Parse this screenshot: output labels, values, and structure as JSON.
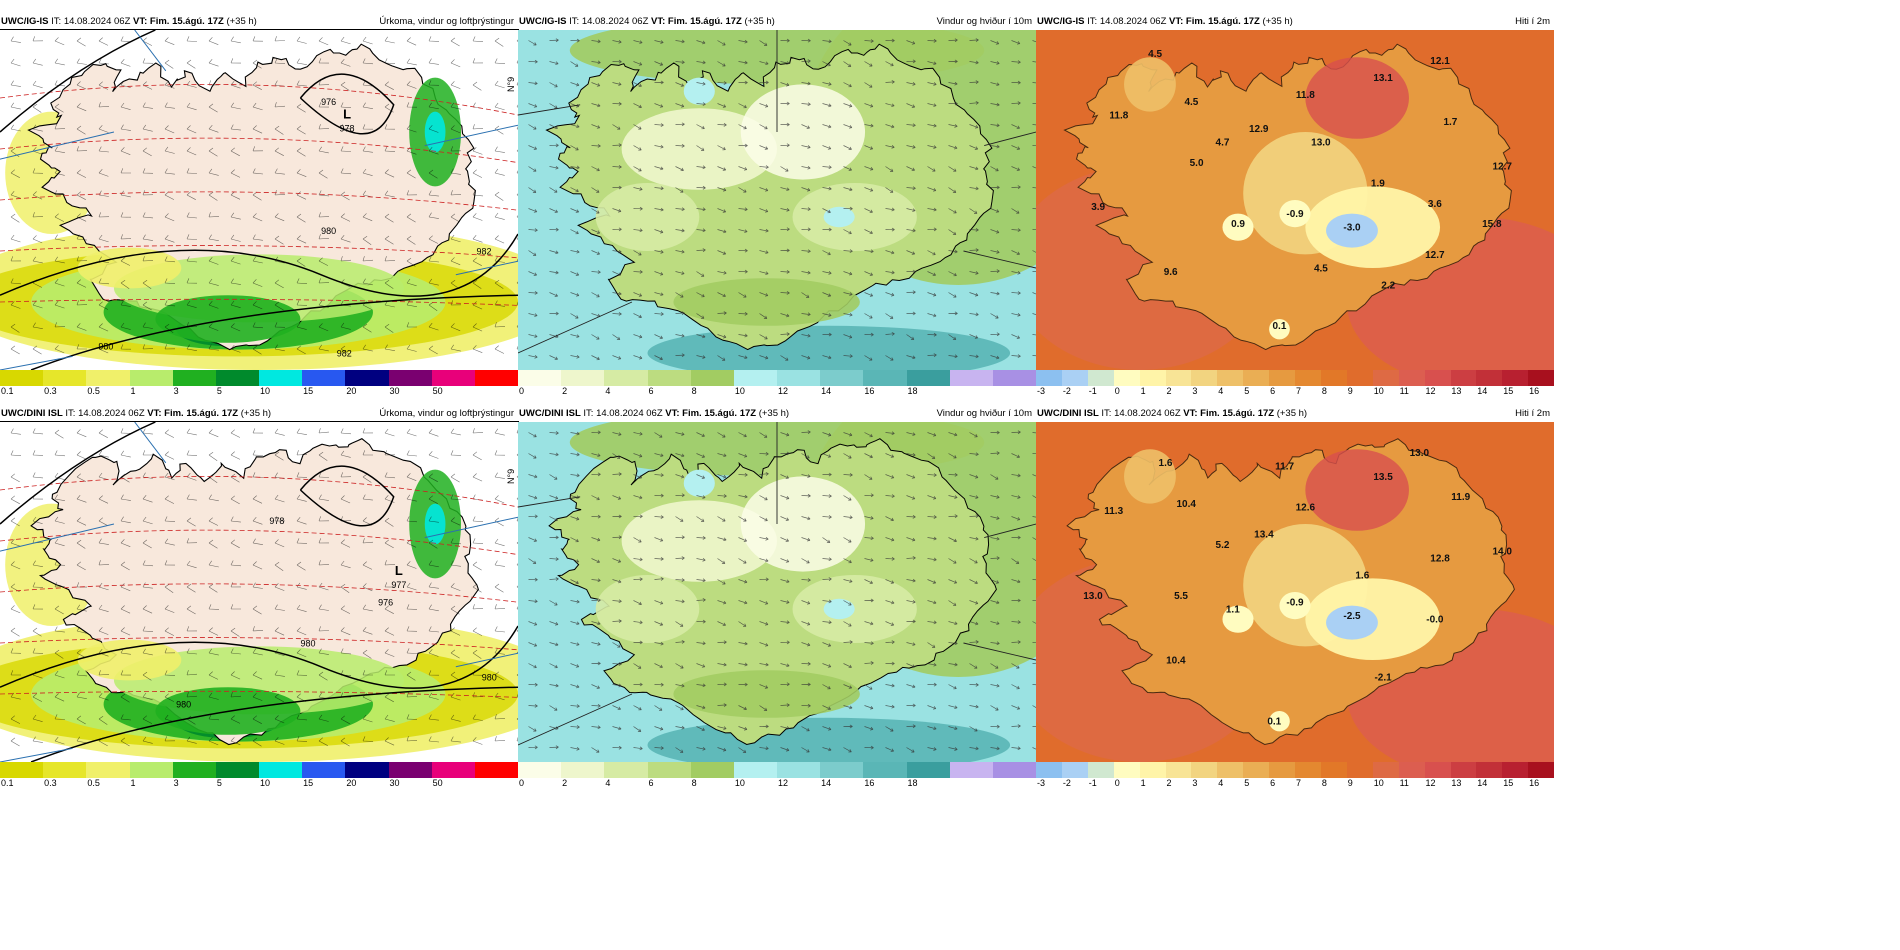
{
  "rows": [
    {
      "model": "UWC/IG-IS",
      "low": {
        "letter": "L",
        "value": "978"
      },
      "isobars": [
        "976",
        "980",
        "982",
        "982",
        "980"
      ],
      "temps": [
        "4.5",
        "11.8",
        "4.5",
        "5.0",
        "4.7",
        "3.9",
        "9.6",
        "12.9",
        "11.8",
        "13.0",
        "13.1",
        "12.1",
        "1.7",
        "12.7",
        "1.9",
        "3.6",
        "0.9",
        "-0.9",
        "-3.0",
        "15.8",
        "4.5",
        "12.7",
        "2.2",
        "0.1"
      ]
    },
    {
      "model": "UWC/DINI ISL",
      "low": {
        "letter": "L",
        "value": "977"
      },
      "isobars": [
        "978",
        "976",
        "980",
        "980",
        "980"
      ],
      "temps": [
        "1.6",
        "11.3",
        "10.4",
        "5.2",
        "13.0",
        "5.5",
        "10.4",
        "11.7",
        "13.4",
        "12.6",
        "13.5",
        "13.0",
        "11.9",
        "12.8",
        "14.0",
        "1.6",
        "1.1",
        "-0.9",
        "-2.5",
        "-0.0",
        "-2.1",
        "0.1"
      ]
    }
  ],
  "common": {
    "it_label": "IT:",
    "it_value": "14.08.2024 06Z",
    "vt_label": "VT:",
    "vt_value": "Fim. 15.ágú. 17Z",
    "lead": "(+35 h)",
    "titles": {
      "precip": "Úrkoma, vindur og loftþrýstingur",
      "wind": "Vindur og hviður í 10m",
      "temp": "Hiti í 2m"
    },
    "lat_label": "N°9"
  },
  "scales": {
    "precip": {
      "ticks": [
        "0.1",
        "0.3",
        "0.5",
        "1",
        "3",
        "5",
        "10",
        "15",
        "20",
        "30",
        "50"
      ],
      "colors": [
        "#d8d800",
        "#e6e62a",
        "#f0f06a",
        "#b8ec6c",
        "#20b020",
        "#008a2c",
        "#00e8e0",
        "#2858f0",
        "#000080",
        "#7a0070",
        "#e8007a",
        "#ff0000"
      ]
    },
    "wind": {
      "ticks": [
        "0",
        "2",
        "4",
        "6",
        "8",
        "10",
        "12",
        "14",
        "16",
        "18"
      ],
      "colors": [
        "#fbfde8",
        "#eef6cc",
        "#d6eba4",
        "#bcdc80",
        "#a2cc62",
        "#b4f0f0",
        "#9ae2e2",
        "#7ccccc",
        "#5ab6b6",
        "#3a9e9e",
        "#c8b4f0",
        "#a890e4"
      ]
    },
    "temp": {
      "ticks": [
        "-3",
        "-2",
        "-1",
        "0",
        "1",
        "2",
        "3",
        "4",
        "5",
        "6",
        "7",
        "8",
        "9",
        "10",
        "11",
        "12",
        "13",
        "14",
        "15",
        "16"
      ],
      "colors": [
        "#8cc0f0",
        "#aad0f4",
        "#d0e8d0",
        "#fffcc0",
        "#fff4a8",
        "#f8e496",
        "#f2d480",
        "#eec068",
        "#eaae54",
        "#e69a40",
        "#e48830",
        "#e27828",
        "#e06c2c",
        "#de6a44",
        "#dc5e50",
        "#d8504e",
        "#cc3e42",
        "#c23038",
        "#b82030",
        "#a8101e"
      ]
    }
  },
  "colors": {
    "land_pink": "#f8e8dc",
    "sea_precip": "#ffffff",
    "grid_blue": "#2a70b0",
    "isobar": "#000000",
    "isotherm": "#cc2222"
  }
}
